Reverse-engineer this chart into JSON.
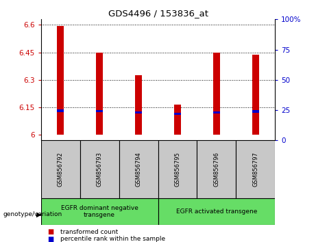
{
  "title": "GDS4496 / 153836_at",
  "samples": [
    "GSM856792",
    "GSM856793",
    "GSM856794",
    "GSM856795",
    "GSM856796",
    "GSM856797"
  ],
  "bar_bottoms": [
    6.0,
    6.0,
    6.0,
    6.0,
    6.0,
    6.0
  ],
  "bar_tops": [
    6.595,
    6.447,
    6.325,
    6.165,
    6.447,
    6.438
  ],
  "blue_positions": [
    6.125,
    6.123,
    6.115,
    6.108,
    6.115,
    6.12
  ],
  "blue_heights": [
    0.014,
    0.014,
    0.014,
    0.014,
    0.014,
    0.014
  ],
  "ylim_left": [
    5.97,
    6.63
  ],
  "yticks_left": [
    6.0,
    6.15,
    6.3,
    6.45,
    6.6
  ],
  "ytick_labels_left": [
    "6",
    "6.15",
    "6.3",
    "6.45",
    "6.6"
  ],
  "yticks_right": [
    0,
    25,
    50,
    75,
    100
  ],
  "ytick_labels_right": [
    "0",
    "25",
    "50",
    "75",
    "100%"
  ],
  "group1_label": "EGFR dominant negative\ntransgene",
  "group2_label": "EGFR activated transgene",
  "genotype_label": "genotype/variation",
  "legend_red": "transformed count",
  "legend_blue": "percentile rank within the sample",
  "bar_color": "#cc0000",
  "blue_color": "#0000cc",
  "group_bg": "#66dd66",
  "tick_color_left": "#cc0000",
  "tick_color_right": "#0000cc",
  "grid_color": "black",
  "bg_color": "white",
  "sample_bg": "#c8c8c8"
}
